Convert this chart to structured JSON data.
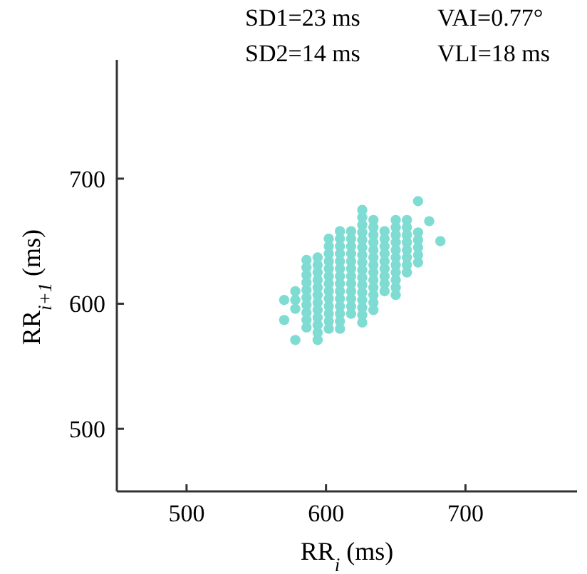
{
  "chart_data": {
    "type": "scatter",
    "xlabel": "RR$_{i}$ (ms)",
    "ylabel": "RR$_{i+1}$ (ms)",
    "annotations": [
      "SD1=23 ms",
      "VAI=0.77°",
      "SD2=14 ms",
      "VLI=18 ms"
    ],
    "xlim": [
      450,
      780
    ],
    "ylim": [
      450,
      795
    ],
    "xticks": [
      500,
      600,
      700
    ],
    "yticks": [
      500,
      600,
      700
    ],
    "grid": false,
    "marker": "circle",
    "series": [
      {
        "color": "#7fdcd2",
        "x": [
          570,
          570,
          578,
          578,
          578,
          578
        ],
        "values": [
          603,
          587,
          610,
          603,
          596,
          571
        ]
      },
      {
        "color": "#7fdcd2",
        "x": [
          586,
          586,
          586,
          586,
          586,
          586,
          586,
          586,
          586,
          586
        ],
        "values": [
          635,
          629,
          623,
          617,
          611,
          605,
          599,
          593,
          587,
          581
        ]
      },
      {
        "color": "#7fdcd2",
        "x": [
          594,
          594,
          594,
          594,
          594,
          594,
          594,
          594,
          594,
          594,
          594,
          594
        ],
        "values": [
          637,
          631,
          625,
          619,
          613,
          607,
          601,
          595,
          589,
          583,
          577,
          571
        ]
      },
      {
        "color": "#7fdcd2",
        "x": [
          602,
          602,
          602,
          602,
          602,
          602,
          602,
          602,
          602,
          602,
          602,
          602,
          602
        ],
        "values": [
          652,
          646,
          640,
          634,
          628,
          622,
          616,
          610,
          604,
          598,
          592,
          586,
          580
        ]
      },
      {
        "color": "#7fdcd2",
        "x": [
          610,
          610,
          610,
          610,
          610,
          610,
          610,
          610,
          610,
          610,
          610,
          610,
          610,
          610
        ],
        "values": [
          658,
          652,
          646,
          640,
          634,
          628,
          622,
          616,
          610,
          604,
          598,
          592,
          586,
          580
        ]
      },
      {
        "color": "#7fdcd2",
        "x": [
          618,
          618,
          618,
          618,
          618,
          618,
          618,
          618,
          618,
          618,
          618,
          618
        ],
        "values": [
          658,
          652,
          646,
          640,
          634,
          628,
          622,
          616,
          610,
          604,
          598,
          592
        ]
      },
      {
        "color": "#7fdcd2",
        "x": [
          626,
          626,
          626,
          626,
          626,
          626,
          626,
          626,
          626,
          626,
          626,
          626,
          626,
          626,
          626,
          626
        ],
        "values": [
          675,
          669,
          663,
          657,
          651,
          645,
          639,
          633,
          627,
          621,
          615,
          609,
          603,
          597,
          591,
          585
        ]
      },
      {
        "color": "#7fdcd2",
        "x": [
          634,
          634,
          634,
          634,
          634,
          634,
          634,
          634,
          634,
          634,
          634,
          634,
          634
        ],
        "values": [
          667,
          661,
          655,
          649,
          643,
          637,
          631,
          625,
          619,
          613,
          607,
          601,
          595
        ]
      },
      {
        "color": "#7fdcd2",
        "x": [
          642,
          642,
          642,
          642,
          642,
          642,
          642,
          642,
          642
        ],
        "values": [
          658,
          652,
          646,
          640,
          634,
          628,
          622,
          616,
          610
        ]
      },
      {
        "color": "#7fdcd2",
        "x": [
          650,
          650,
          650,
          650,
          650,
          650,
          650,
          650,
          650,
          650,
          650
        ],
        "values": [
          667,
          661,
          655,
          649,
          643,
          637,
          631,
          625,
          619,
          613,
          607
        ]
      },
      {
        "color": "#7fdcd2",
        "x": [
          658,
          658,
          658,
          658,
          658,
          658,
          658,
          658
        ],
        "values": [
          667,
          661,
          655,
          649,
          643,
          637,
          631,
          625
        ]
      },
      {
        "color": "#7fdcd2",
        "x": [
          666,
          666,
          666,
          666,
          666,
          666,
          674,
          682
        ],
        "values": [
          657,
          651,
          645,
          639,
          633,
          682,
          666,
          650
        ]
      }
    ]
  }
}
